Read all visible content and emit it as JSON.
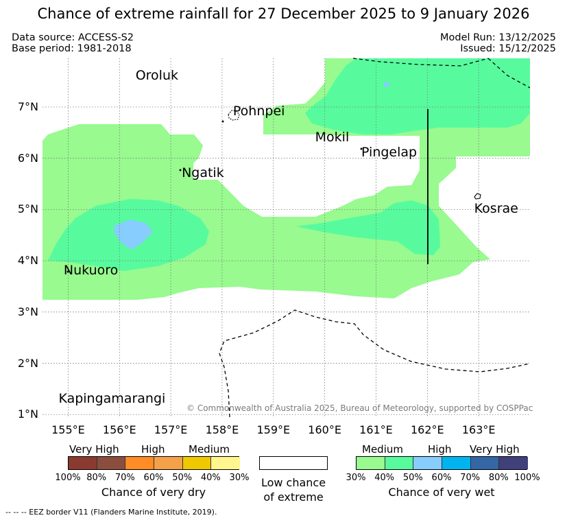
{
  "title": "Chance of extreme rainfall for 27 December 2025 to 9 January 2026",
  "meta": {
    "data_source": "Data source: ACCESS-S2",
    "base_period": "Base period: 1981-2018",
    "model_run": "Model Run: 13/12/2025",
    "issued": "Issued: 15/12/2025"
  },
  "axes": {
    "x_ticks": [
      "155°E",
      "156°E",
      "157°E",
      "158°E",
      "159°E",
      "160°E",
      "161°E",
      "162°E",
      "163°E"
    ],
    "y_ticks": [
      "7°N",
      "6°N",
      "5°N",
      "4°N",
      "3°N",
      "2°N",
      "1°N"
    ],
    "lon_range": [
      154.5,
      164.0
    ],
    "lat_range": [
      0.95,
      7.95
    ]
  },
  "places": [
    {
      "name": "Oroluk",
      "lon": 156.3,
      "lat": 7.6
    },
    {
      "name": "Pohnpei",
      "lon": 158.2,
      "lat": 6.9
    },
    {
      "name": "Mokil",
      "lon": 159.8,
      "lat": 6.4
    },
    {
      "name": "Pingelap",
      "lon": 160.7,
      "lat": 6.1
    },
    {
      "name": "Ngatik",
      "lon": 157.2,
      "lat": 5.7
    },
    {
      "name": "Kosrae",
      "lon": 162.9,
      "lat": 5.0
    },
    {
      "name": "Nukuoro",
      "lon": 154.9,
      "lat": 3.8
    },
    {
      "name": "Kapingamarangi",
      "lon": 154.8,
      "lat": 1.3
    }
  ],
  "copyright": "© Commonwealth of Australia 2025, Bureau of Meteorology, supported by COSPPac",
  "colors": {
    "wet_30": "#98fa8f",
    "wet_40": "#57fb9e",
    "wet_50": "#87cdfd",
    "background": "#ffffff"
  },
  "legend": {
    "dry": {
      "headers": [
        "Very High",
        "High",
        "Medium"
      ],
      "percents": [
        "100%",
        "80%",
        "70%",
        "60%",
        "50%",
        "40%",
        "30%"
      ],
      "colors": [
        "#8b3a32",
        "#8b4e3e",
        "#ff8c25",
        "#f4a14a",
        "#f0c800",
        "#fff68d"
      ],
      "title": "Chance of very dry"
    },
    "low": {
      "line1": "Low chance",
      "line2": "of extreme"
    },
    "wet": {
      "headers": [
        "Medium",
        "High",
        "Very High"
      ],
      "percents": [
        "30%",
        "40%",
        "50%",
        "60%",
        "70%",
        "80%",
        "100%"
      ],
      "colors": [
        "#98fa8f",
        "#57fb9e",
        "#87cdfd",
        "#00b4f0",
        "#3566a6",
        "#40407a"
      ],
      "title": "Chance of very wet"
    },
    "eez_note": "-- -- -- EEZ border V11 (Flanders Marine Institute, 2019)."
  }
}
